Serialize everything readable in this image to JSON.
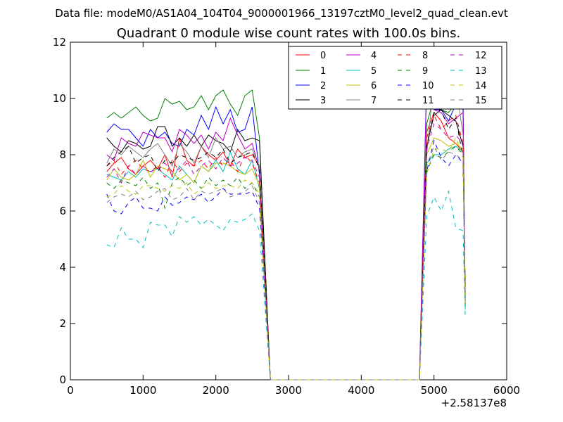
{
  "figure": {
    "suptitle": "Data file: modeM0/AS1A04_104T04_9000001966_13197cztM0_level2_quad_clean.evt"
  },
  "chart_data": {
    "type": "line",
    "title": "Quadrant 0 module wise count rates with 100.0s bins.",
    "xlabel": "",
    "ylabel": "",
    "x_offset_label": "+2.58137e8",
    "xlim": [
      0,
      6000
    ],
    "ylim": [
      0,
      12
    ],
    "xticks": [
      "0",
      "1000",
      "2000",
      "3000",
      "4000",
      "5000",
      "6000"
    ],
    "yticks": [
      "0",
      "2",
      "4",
      "6",
      "8",
      "10",
      "12"
    ],
    "grid": false,
    "legend": {
      "placement": "top-right",
      "columns": 4
    },
    "series": [
      {
        "name": "0",
        "color": "#ff0000",
        "dash": "solid",
        "seg1": [
          7.4,
          7.7,
          7.9,
          7.5,
          7.3,
          7.6,
          7.8,
          7.5,
          8.0,
          7.2,
          8.6,
          7.8,
          7.6,
          8.3,
          8.0,
          7.8,
          8.1,
          7.6,
          8.2,
          7.9,
          8.0,
          7.6
        ],
        "seg2": [
          8.8,
          9.5,
          9.2,
          8.6,
          8.4,
          8.1
        ]
      },
      {
        "name": "1",
        "color": "#008000",
        "dash": "solid",
        "seg1": [
          9.3,
          9.5,
          9.3,
          9.5,
          9.7,
          9.4,
          9.2,
          9.3,
          10.0,
          9.8,
          9.9,
          9.6,
          9.7,
          10.1,
          9.6,
          10.1,
          10.3,
          9.8,
          9.4,
          10.1,
          10.3,
          8.6
        ],
        "seg2": [
          9.1,
          10.0,
          9.6,
          9.5,
          9.8,
          9.6
        ]
      },
      {
        "name": "2",
        "color": "#0000ff",
        "dash": "solid",
        "seg1": [
          8.8,
          9.1,
          8.9,
          8.9,
          8.6,
          8.3,
          8.9,
          8.6,
          8.8,
          8.4,
          8.3,
          8.9,
          8.7,
          9.4,
          8.9,
          9.7,
          9.1,
          9.6,
          8.8,
          8.9,
          9.7,
          7.3
        ],
        "seg2": [
          10.7,
          9.6,
          9.6,
          9.2,
          9.8,
          9.9
        ]
      },
      {
        "name": "3",
        "color": "#000000",
        "dash": "solid",
        "seg1": [
          8.6,
          8.3,
          8.1,
          8.5,
          8.4,
          8.2,
          8.3,
          9.0,
          9.0,
          8.3,
          8.6,
          8.3,
          8.7,
          8.3,
          8.7,
          8.5,
          8.4,
          8.1,
          8.9,
          8.5,
          8.6,
          8.5
        ],
        "seg2": [
          8.3,
          9.4,
          9.6,
          9.4,
          9.2,
          8.3
        ]
      },
      {
        "name": "4",
        "color": "#bf00bf",
        "dash": "solid",
        "seg1": [
          8.0,
          7.8,
          8.6,
          8.4,
          8.3,
          8.8,
          8.7,
          8.6,
          8.6,
          8.1,
          8.9,
          8.7,
          8.4,
          8.7,
          8.2,
          8.8,
          8.5,
          9.3,
          8.7,
          8.2,
          8.4,
          7.5
        ],
        "seg2": [
          10.5,
          9.6,
          9.5,
          9.1,
          9.3,
          9.5
        ]
      },
      {
        "name": "5",
        "color": "#00bfbf",
        "dash": "solid",
        "seg1": [
          7.3,
          7.2,
          7.1,
          7.4,
          7.2,
          7.5,
          7.4,
          7.5,
          7.3,
          7.1,
          7.6,
          7.3,
          7.0,
          7.6,
          7.4,
          7.8,
          7.4,
          8.1,
          7.5,
          7.3,
          7.8,
          6.8
        ],
        "seg2": [
          7.7,
          8.0,
          8.0,
          8.2,
          8.3,
          8.1
        ]
      },
      {
        "name": "6",
        "color": "#bfbf00",
        "dash": "solid",
        "seg1": [
          7.1,
          7.5,
          7.2,
          7.1,
          7.3,
          7.8,
          7.2,
          7.6,
          7.5,
          7.4,
          7.1,
          7.3,
          7.0,
          7.6,
          7.4,
          7.7,
          7.7,
          7.6,
          7.4,
          7.3,
          7.5,
          6.9
        ],
        "seg2": [
          8.0,
          8.6,
          8.5,
          8.3,
          8.4,
          8.2
        ]
      },
      {
        "name": "7",
        "color": "#808080",
        "dash": "solid",
        "seg1": [
          7.7,
          8.2,
          8.0,
          8.3,
          8.1,
          7.9,
          8.2,
          8.4,
          8.0,
          7.6,
          8.4,
          8.1,
          7.7,
          8.3,
          7.9,
          8.6,
          8.2,
          8.3,
          7.9,
          8.1,
          8.2,
          7.6
        ],
        "seg2": [
          8.0,
          9.3,
          9.2,
          9.0,
          9.4,
          8.7
        ]
      },
      {
        "name": "8",
        "color": "#ff0000",
        "dash": "dashed",
        "seg1": [
          7.6,
          7.8,
          7.3,
          7.6,
          7.8,
          7.5,
          7.4,
          7.6,
          7.2,
          7.8,
          7.4,
          7.7,
          7.6,
          7.8,
          7.5,
          7.9,
          7.6,
          7.8,
          7.4,
          8.0,
          7.7,
          7.0
        ],
        "seg2": [
          8.6,
          9.4,
          8.9,
          9.2,
          9.4,
          8.4
        ]
      },
      {
        "name": "9",
        "color": "#008000",
        "dash": "dashed",
        "seg1": [
          7.0,
          6.8,
          7.1,
          7.0,
          6.9,
          7.2,
          6.8,
          7.0,
          6.1,
          7.0,
          7.2,
          6.9,
          7.1,
          6.8,
          7.2,
          6.9,
          7.1,
          6.9,
          7.2,
          6.8,
          7.0,
          6.5
        ],
        "seg2": [
          7.4,
          8.0,
          7.9,
          8.1,
          8.3,
          8.0
        ]
      },
      {
        "name": "10",
        "color": "#0000ff",
        "dash": "dashed",
        "seg1": [
          6.6,
          6.0,
          5.9,
          6.3,
          6.5,
          6.1,
          6.1,
          6.0,
          6.5,
          6.2,
          6.3,
          6.5,
          6.4,
          6.6,
          6.3,
          6.5,
          6.8,
          6.6,
          6.6,
          6.6,
          6.7,
          6.1
        ],
        "seg2": [
          7.4,
          8.5,
          7.9,
          7.6,
          8.0,
          7.7
        ]
      },
      {
        "name": "11",
        "color": "#000000",
        "dash": "dashed",
        "seg1": [
          7.6,
          7.9,
          8.1,
          8.3,
          7.7,
          7.9,
          8.0,
          7.4,
          7.8,
          7.7,
          8.0,
          7.9,
          7.8,
          7.9,
          8.1,
          7.9,
          8.2,
          7.7,
          7.9,
          8.0,
          8.1,
          7.5
        ],
        "seg2": [
          8.3,
          9.5,
          9.6,
          8.9,
          9.3,
          7.9
        ]
      },
      {
        "name": "12",
        "color": "#bf00bf",
        "dash": "dashed",
        "seg1": [
          7.2,
          7.5,
          7.0,
          7.6,
          7.3,
          7.6,
          7.4,
          7.5,
          7.7,
          7.4,
          7.5,
          7.8,
          7.3,
          7.6,
          7.8,
          7.5,
          7.9,
          7.6,
          7.7,
          7.9,
          7.8,
          7.2
        ],
        "seg2": [
          8.2,
          9.1,
          8.9,
          8.6,
          8.7,
          8.4
        ]
      },
      {
        "name": "13",
        "color": "#00bfbf",
        "dash": "dashed",
        "seg1": [
          4.8,
          4.7,
          5.4,
          5.0,
          5.0,
          4.7,
          5.6,
          5.5,
          5.5,
          5.1,
          5.8,
          5.6,
          5.8,
          5.5,
          5.7,
          5.5,
          5.3,
          5.7,
          5.6,
          5.7,
          5.9,
          5.3
        ],
        "seg2": [
          5.8,
          6.5,
          6.0,
          6.7,
          5.4,
          5.3
        ]
      },
      {
        "name": "14",
        "color": "#bfbf00",
        "dash": "dashed",
        "seg1": [
          6.5,
          6.6,
          6.9,
          6.7,
          6.6,
          6.9,
          6.9,
          6.8,
          6.7,
          6.9,
          6.8,
          7.0,
          6.6,
          6.8,
          7.0,
          6.8,
          6.9,
          6.9,
          6.8,
          7.1,
          7.0,
          6.6
        ],
        "seg2": [
          7.3,
          8.2,
          8.2,
          8.1,
          8.6,
          8.0
        ]
      },
      {
        "name": "15",
        "color": "#808080",
        "dash": "dashed",
        "seg1": [
          6.3,
          6.5,
          6.6,
          6.5,
          6.7,
          6.4,
          6.5,
          6.7,
          6.8,
          6.4,
          6.5,
          6.8,
          6.4,
          6.7,
          6.6,
          6.7,
          6.8,
          6.5,
          6.6,
          6.7,
          6.9,
          6.3
        ],
        "seg2": [
          7.6,
          8.3,
          7.8,
          8.1,
          8.0,
          7.8
        ]
      }
    ],
    "segment1": {
      "x_start": 500,
      "x_step": 100
    },
    "segment2": {
      "x_start": 4900,
      "x_step": 100
    },
    "drop_after_seg1": [
      {
        "x": 2700,
        "y_scale": 0.33
      },
      {
        "x": 2750,
        "y_scale": 0
      }
    ],
    "flat_zero": [
      2750,
      4800
    ],
    "rise_before_seg2": {
      "x": 4800,
      "y": 0
    },
    "tail_after_seg2": {
      "x": 5430,
      "values": [
        3.1,
        2.8,
        2.6,
        2.9,
        2.7,
        2.5,
        2.6,
        2.6,
        2.7,
        2.6,
        2.8,
        2.9,
        2.7,
        2.2,
        2.6,
        2.7
      ]
    },
    "special_peak_series": "7",
    "special_peak_values": [
      10.7,
      11.2,
      10.9,
      10.5
    ]
  }
}
